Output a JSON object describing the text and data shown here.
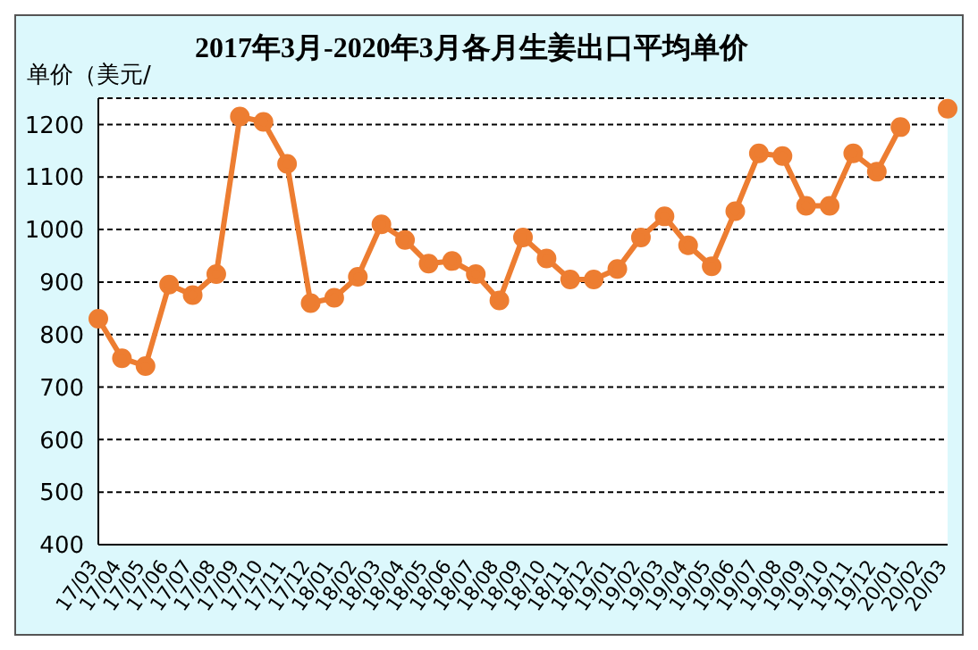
{
  "chart_data": {
    "type": "line",
    "title": "2017年3月-2020年3月各月生姜出口平均单价",
    "ylabel": "单价（美元/",
    "categories": [
      "17/03",
      "17/04",
      "17/05",
      "17/06",
      "17/07",
      "17/08",
      "17/09",
      "17/10",
      "17/11",
      "17/12",
      "18/01",
      "18/02",
      "18/03",
      "18/04",
      "18/05",
      "18/06",
      "18/07",
      "18/08",
      "18/09",
      "18/10",
      "18/11",
      "18/12",
      "19/01",
      "19/02",
      "19/03",
      "19/04",
      "19/05",
      "19/06",
      "19/07",
      "19/08",
      "19/09",
      "19/10",
      "19/11",
      "19/12",
      "20/01",
      "20/02",
      "20/03"
    ],
    "series": [
      {
        "color": "#ed7d31",
        "values": [
          830,
          755,
          740,
          895,
          875,
          915,
          1215,
          1205,
          1125,
          860,
          870,
          910,
          1010,
          980,
          935,
          940,
          915,
          865,
          985,
          945,
          905,
          905,
          925,
          985,
          1025,
          970,
          930,
          1035,
          1145,
          1140,
          1045,
          1045,
          1145,
          1110,
          1195,
          null,
          1230
        ]
      }
    ],
    "ylim": [
      400,
      1250
    ],
    "yticks": [
      400,
      500,
      600,
      700,
      800,
      900,
      1000,
      1100,
      1200
    ],
    "grid": "y",
    "marker": "circle",
    "line_style": "solid"
  }
}
